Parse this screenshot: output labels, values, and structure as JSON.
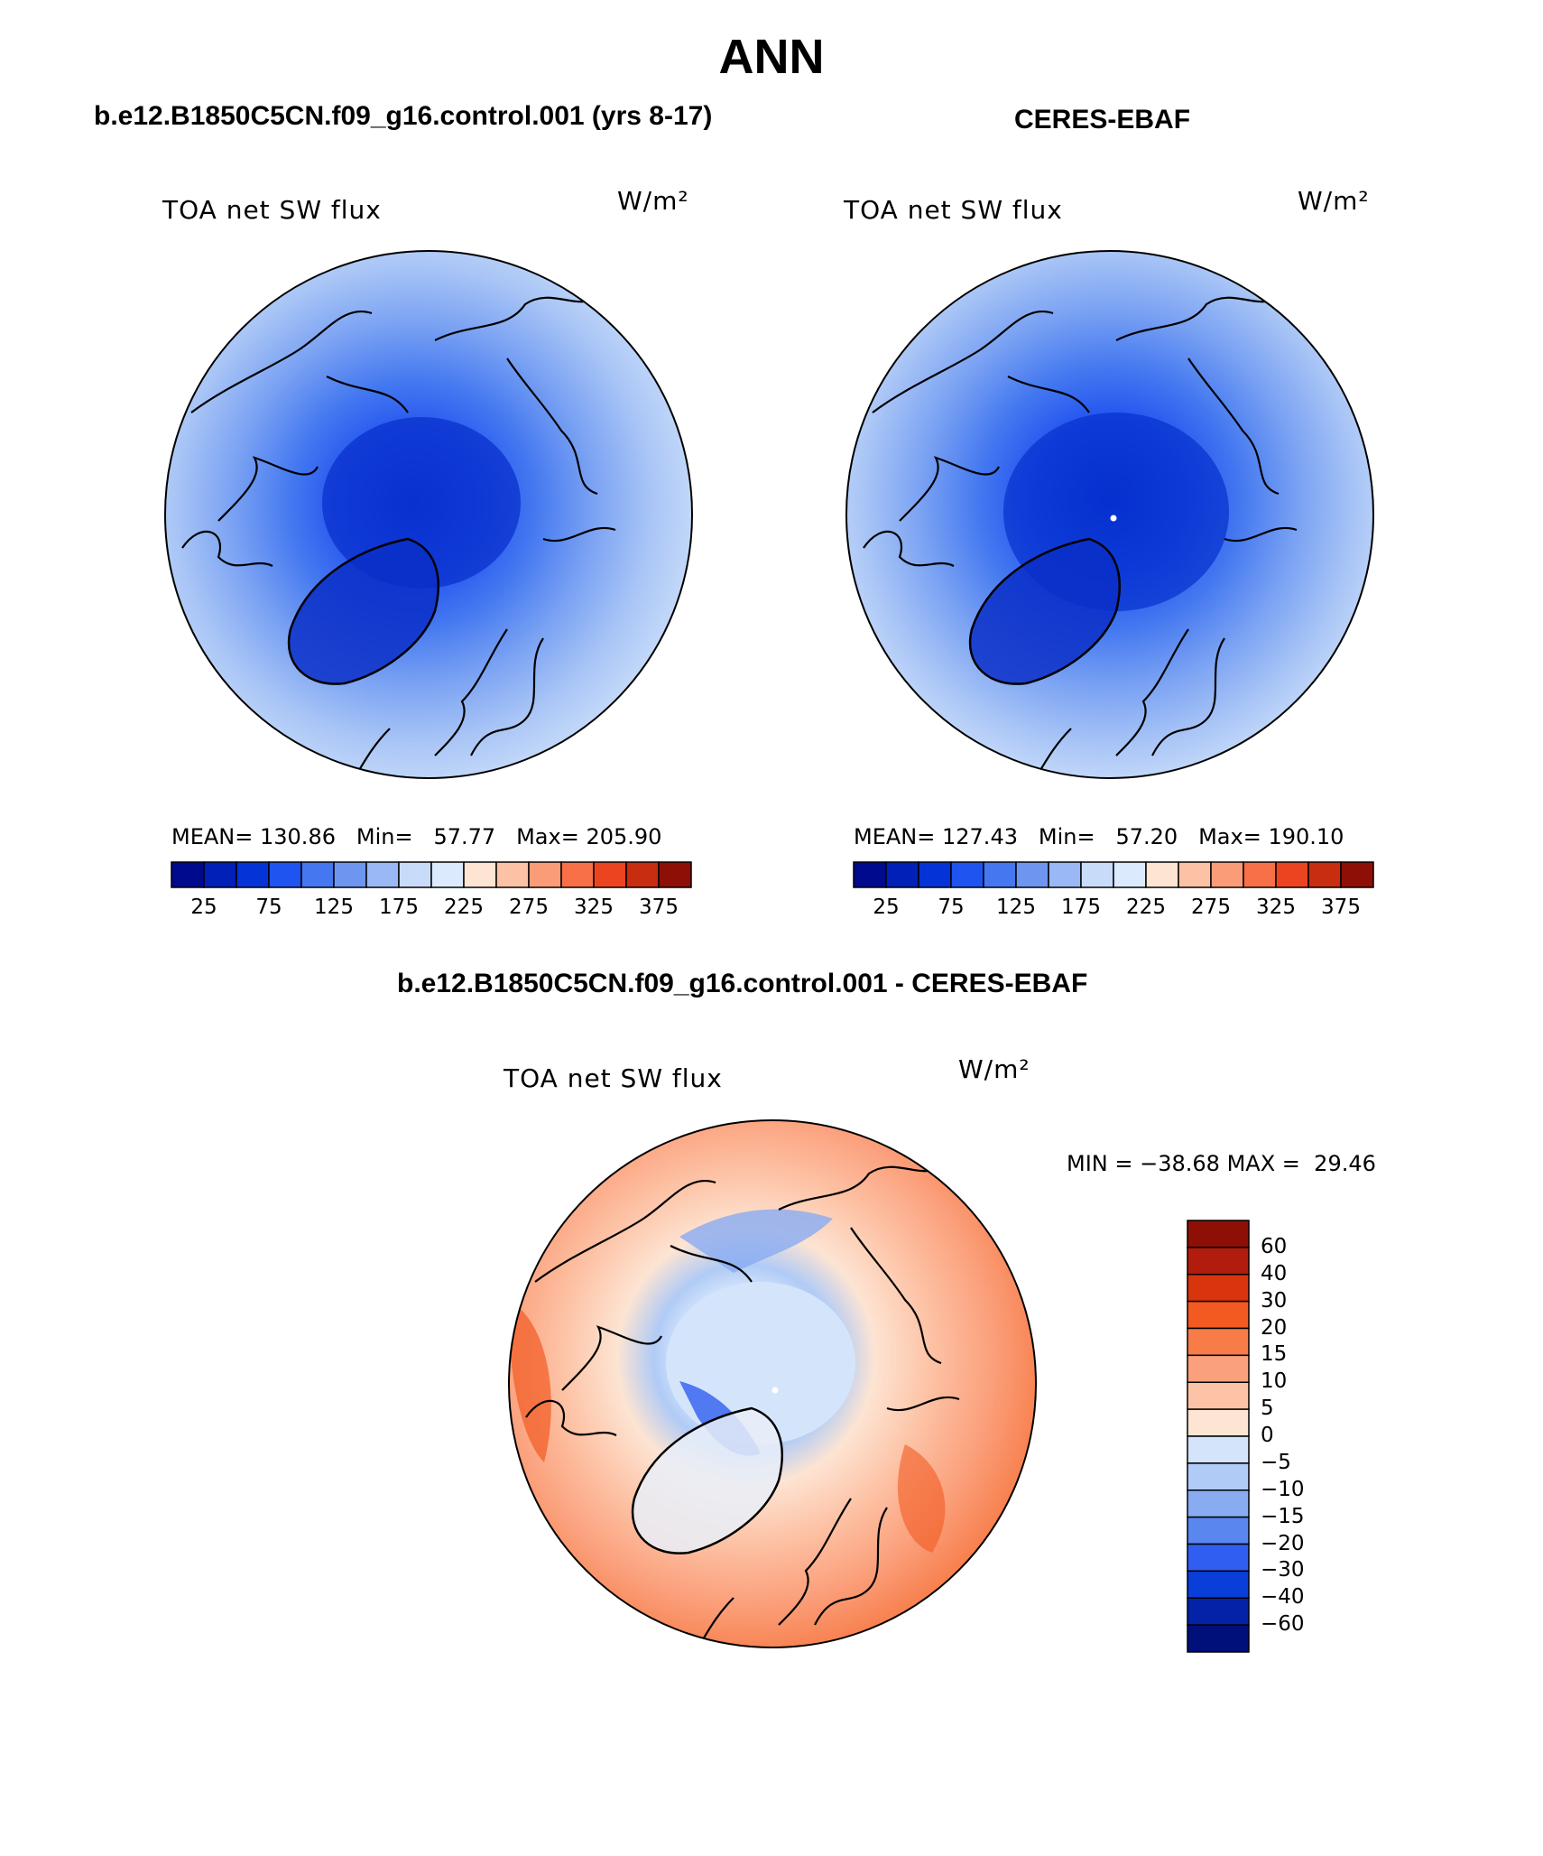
{
  "title": "ANN",
  "panels": [
    {
      "id": "model",
      "heading": "b.e12.B1850C5CN.f09_g16.control.001 (yrs 8-17)",
      "variable": "TOA net SW flux",
      "units": "W/m²",
      "stats": {
        "mean_label": "MEAN=",
        "mean": "130.86",
        "min_label": "Min=",
        "min": "57.77",
        "max_label": "Max=",
        "max": "205.90"
      },
      "colorbar": {
        "colors": [
          "#000a8c",
          "#0020b8",
          "#0433d8",
          "#1f54f0",
          "#4477f0",
          "#6e96f0",
          "#99b8f5",
          "#c8dcfa",
          "#dbeafc",
          "#fde4d3",
          "#fcc2a6",
          "#fb9c78",
          "#f77047",
          "#ec4420",
          "#c82d10",
          "#8e0f06"
        ],
        "labels": [
          "25",
          "75",
          "125",
          "175",
          "225",
          "275",
          "325",
          "375"
        ]
      }
    },
    {
      "id": "obs",
      "heading": "CERES-EBAF",
      "variable": "TOA net SW flux",
      "units": "W/m²",
      "stats": {
        "mean_label": "MEAN=",
        "mean": "127.43",
        "min_label": "Min=",
        "min": "57.20",
        "max_label": "Max=",
        "max": "190.10"
      },
      "colorbar": {
        "colors": [
          "#000a8c",
          "#0020b8",
          "#0433d8",
          "#1f54f0",
          "#4477f0",
          "#6e96f0",
          "#99b8f5",
          "#c8dcfa",
          "#dbeafc",
          "#fde4d3",
          "#fcc2a6",
          "#fb9c78",
          "#f77047",
          "#ec4420",
          "#c82d10",
          "#8e0f06"
        ],
        "labels": [
          "25",
          "75",
          "125",
          "175",
          "225",
          "275",
          "325",
          "375"
        ]
      }
    }
  ],
  "diff": {
    "heading": "b.e12.B1850C5CN.f09_g16.control.001 - CERES-EBAF",
    "variable": "TOA net SW flux",
    "units": "W/m²",
    "min_label": "MIN =",
    "min": "−38.68",
    "max_label": "MAX =",
    "max": "29.46",
    "colorbar": {
      "colors": [
        "#8e0f06",
        "#b21c0c",
        "#d8340e",
        "#f25a22",
        "#f77c48",
        "#fba07c",
        "#fdc3a6",
        "#fde4d3",
        "#d4e5fb",
        "#b0cbf6",
        "#88abf2",
        "#5a86f0",
        "#2f5ef0",
        "#0a3ed8",
        "#0422a8",
        "#00107a"
      ],
      "labels": [
        "60",
        "40",
        "30",
        "20",
        "15",
        "10",
        "5",
        "0",
        "−5",
        "−10",
        "−15",
        "−20",
        "−30",
        "−40",
        "−60"
      ]
    }
  }
}
